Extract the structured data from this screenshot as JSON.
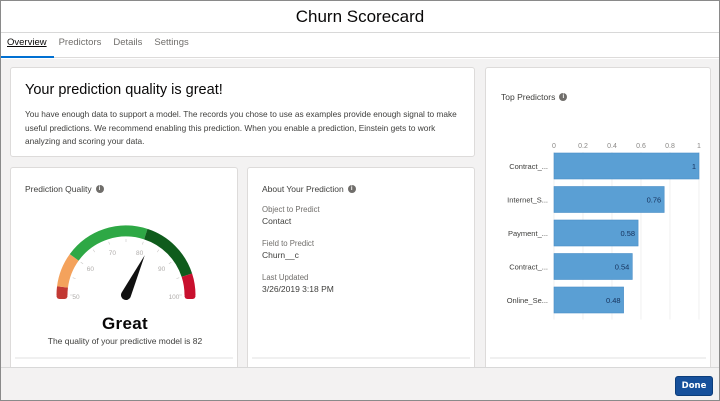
{
  "header": {
    "title": "Churn Scorecard"
  },
  "tabs": [
    {
      "label": "Overview",
      "active": true
    },
    {
      "label": "Predictors",
      "active": false
    },
    {
      "label": "Details",
      "active": false
    },
    {
      "label": "Settings",
      "active": false
    }
  ],
  "banner": {
    "heading": "Your prediction quality is great!",
    "body": "You have enough data to support a model. The records you chose to use as examples provide enough signal to make useful predictions. We recommend enabling this prediction. When you enable a prediction, Einstein gets to work analyzing and scoring your data."
  },
  "quality": {
    "title": "Prediction Quality",
    "info_icon": "info-icon",
    "gauge": {
      "min": 50,
      "max": 100,
      "value": 82,
      "ticks": [
        "50",
        "60",
        "70",
        "80",
        "90",
        "100"
      ],
      "segments": [
        {
          "from": 50,
          "to": 52,
          "color": "#c23934"
        },
        {
          "from": 52,
          "to": 60,
          "color": "#f4a25c"
        },
        {
          "from": 60,
          "to": 80,
          "color": "#2ea845"
        },
        {
          "from": 80,
          "to": 95,
          "color": "#0f5c1c"
        },
        {
          "from": 95,
          "to": 100,
          "color": "#c8102e"
        }
      ]
    },
    "rating": "Great",
    "summary": "The quality of your predictive model is 82"
  },
  "about": {
    "title": "About Your Prediction",
    "info_icon": "info-icon",
    "fields": [
      {
        "label": "Object to Predict",
        "value": "Contact"
      },
      {
        "label": "Field to Predict",
        "value": "Churn__c"
      },
      {
        "label": "Last Updated",
        "value": "3/26/2019 3:18 PM"
      }
    ]
  },
  "predictors": {
    "title": "Top Predictors",
    "info_icon": "info-icon"
  },
  "chart_data": {
    "type": "bar",
    "orientation": "horizontal",
    "title": "Top Predictors",
    "categories": [
      "Contract_...",
      "Internet_S...",
      "Payment_...",
      "Contract_...",
      "Online_Se..."
    ],
    "values": [
      1,
      0.76,
      0.58,
      0.54,
      0.48
    ],
    "value_labels": [
      "1",
      "0.76",
      "0.58",
      "0.54",
      "0.48"
    ],
    "xlim": [
      0,
      1
    ],
    "xticks": [
      "0",
      "0.2",
      "0.4",
      "0.6",
      "0.8",
      "1"
    ],
    "axis_position": "top",
    "grid": true,
    "bar_color": "#5a9fd4"
  },
  "footer": {
    "done_label": "Done",
    "accent": "#16509b"
  }
}
